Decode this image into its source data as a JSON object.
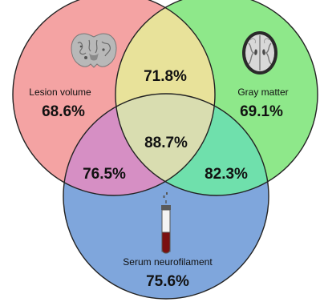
{
  "sets": {
    "lesion": {
      "label": "Lesion volume",
      "value": "68.6%",
      "color": "#f4a3a3",
      "icon": "brain-coronal-slice-icon"
    },
    "gray": {
      "label": "Gray matter",
      "value": "69.1%",
      "color": "#8ee88a",
      "icon": "brain-axial-mri-icon"
    },
    "serum": {
      "label": "Serum neurofilament",
      "value": "75.6%",
      "color": "#7fa6dc",
      "icon": "blood-test-tube-icon"
    }
  },
  "intersections": {
    "lesion_gray": "71.8%",
    "lesion_serum": "76.5%",
    "gray_serum": "82.3%",
    "all": "88.7%"
  },
  "colors": {
    "lesion_gray": "#e8e29a",
    "lesion_serum": "#d68fc4",
    "gray_serum": "#6fe0ac",
    "all": "#d9ddb0",
    "outline": "#222222"
  }
}
